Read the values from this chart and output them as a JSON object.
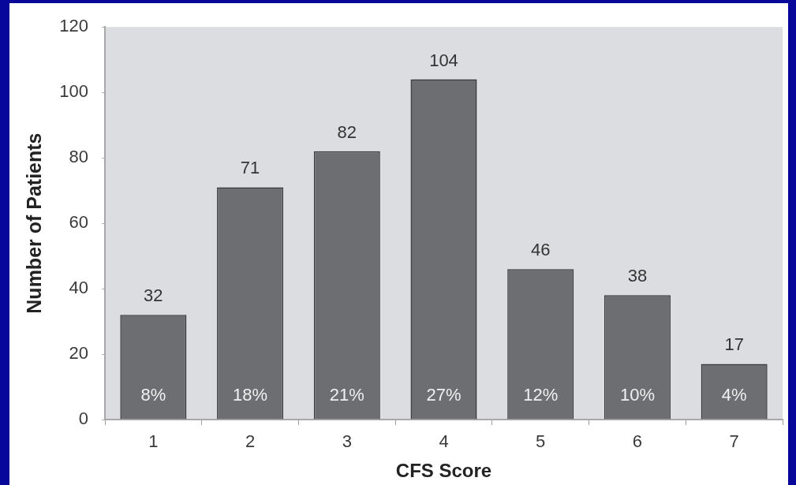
{
  "chart_data": {
    "type": "bar",
    "xlabel": "CFS Score",
    "ylabel": "Number of Patients",
    "categories": [
      "1",
      "2",
      "3",
      "4",
      "5",
      "6",
      "7"
    ],
    "values": [
      32,
      71,
      82,
      104,
      46,
      38,
      17
    ],
    "color": "#6d6e71",
    "ylim": [
      0,
      120
    ],
    "yticks": [
      0,
      20,
      40,
      60,
      80,
      100,
      120
    ],
    "data_labels": true,
    "annotations": [
      "8%",
      "18%",
      "21%",
      "27%",
      "12%",
      "10%",
      "4%"
    ]
  }
}
